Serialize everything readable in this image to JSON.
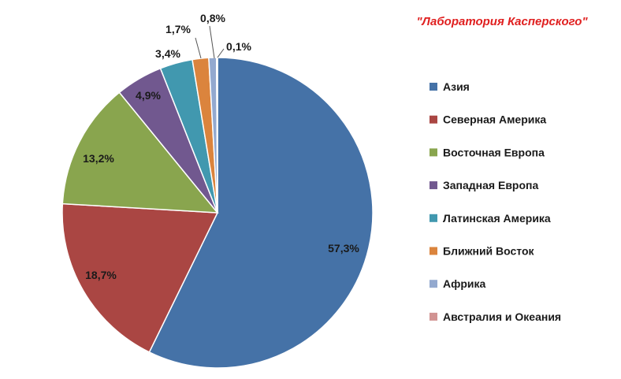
{
  "chart_data": {
    "type": "pie",
    "title": "\"Лаборатория Касперского\"",
    "legend_position": "right",
    "slices": [
      {
        "label": "Азия",
        "value": 57.3,
        "value_label": "57,3%",
        "color": "#4572a7"
      },
      {
        "label": "Северная Америка",
        "value": 18.7,
        "value_label": "18,7%",
        "color": "#aa4643"
      },
      {
        "label": "Восточная Европа",
        "value": 13.2,
        "value_label": "13,2%",
        "color": "#89a54e"
      },
      {
        "label": "Западная Европа",
        "value": 4.9,
        "value_label": "4,9%",
        "color": "#71588f"
      },
      {
        "label": "Латинская Америка",
        "value": 3.4,
        "value_label": "3,4%",
        "color": "#4198af"
      },
      {
        "label": "Ближний Восток",
        "value": 1.7,
        "value_label": "1,7%",
        "color": "#db843d"
      },
      {
        "label": "Африка",
        "value": 0.8,
        "value_label": "0,8%",
        "color": "#93a9cf"
      },
      {
        "label": "Австралия и Океания",
        "value": 0.1,
        "value_label": "0,1%",
        "color": "#d19392"
      }
    ]
  }
}
